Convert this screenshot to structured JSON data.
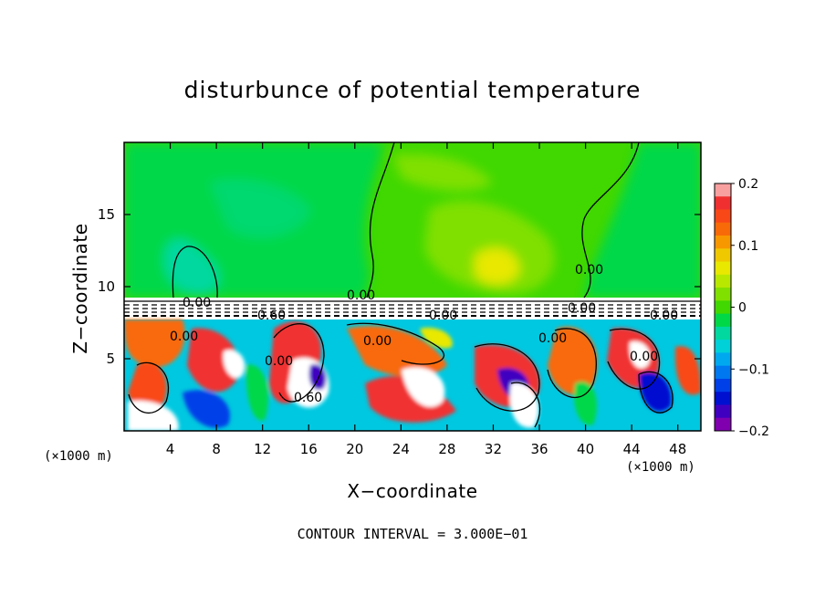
{
  "chart_data": {
    "type": "heatmap",
    "title": "disturbunce of potential temperature",
    "xlabel": "X−coordinate",
    "ylabel": "Z−coordinate",
    "x_unit_label": "(×1000 m)",
    "footer": "CONTOUR INTERVAL = 3.000E−01",
    "xlim": [
      0,
      50
    ],
    "ylim": [
      0,
      20
    ],
    "x_ticks": [
      4,
      8,
      12,
      16,
      20,
      24,
      28,
      32,
      36,
      40,
      44,
      48
    ],
    "y_ticks": [
      5,
      10,
      15
    ],
    "colorbar": {
      "range": [
        -0.2,
        0.2
      ],
      "tick_labels": [
        "0.2",
        "0.1",
        "0",
        "−0.1",
        "−0.2"
      ],
      "tick_values": [
        0.2,
        0.1,
        0,
        -0.1,
        -0.2
      ],
      "colors": [
        "#f8a0a0",
        "#f03030",
        "#f84818",
        "#f86a08",
        "#f89800",
        "#f0c800",
        "#e8e800",
        "#b8e800",
        "#80e000",
        "#40d800",
        "#00d848",
        "#00d8a0",
        "#00d0d8",
        "#00a8f0",
        "#0078f0",
        "#0040e8",
        "#0010d0",
        "#4000c0",
        "#8000b0"
      ]
    },
    "contour_labels": [
      "0.00",
      "0.60",
      "0.00",
      "0.00",
      "0.00",
      "0.60",
      "0.00",
      "0.00",
      "0.00",
      "0.00",
      "0.00",
      "0.00",
      "0.00"
    ],
    "field_regions": {
      "upper_layer_z": [
        9.3,
        20
      ],
      "upper_layer_level": 0.0,
      "inversion_z": [
        7.7,
        9.3
      ],
      "lower_layer_z": [
        0,
        7.7
      ]
    }
  }
}
